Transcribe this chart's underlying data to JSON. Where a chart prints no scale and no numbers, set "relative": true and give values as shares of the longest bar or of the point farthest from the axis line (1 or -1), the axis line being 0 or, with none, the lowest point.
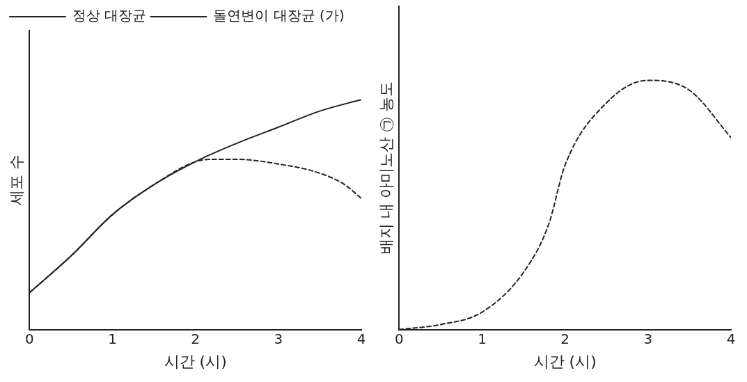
{
  "chart_data": [
    {
      "type": "line",
      "xlabel": "시간 (시)",
      "ylabel": "세포 수",
      "relative": true,
      "xlim": [
        0,
        4
      ],
      "xticks": [
        0,
        1,
        2,
        3,
        4
      ],
      "tick_labels": "x",
      "grid": false,
      "legend": "top left",
      "marker": "none",
      "series": [
        {
          "name": "정상 대장균",
          "color": "#222222",
          "line_style": "solid",
          "x": [
            0,
            0.5,
            1,
            1.5,
            2,
            2.5,
            3,
            3.5,
            4
          ],
          "values": [
            0.16,
            0.32,
            0.5,
            0.63,
            0.73,
            0.81,
            0.88,
            0.95,
            1
          ]
        },
        {
          "name": "돌연변이 대장균 (가)",
          "color": "#222222",
          "line_style": "dashed",
          "x": [
            0,
            0.5,
            1,
            1.5,
            2,
            2.2,
            2.5,
            3,
            3.5,
            3.8,
            4
          ],
          "values": [
            0.16,
            0.32,
            0.5,
            0.63,
            0.73,
            0.74,
            0.74,
            0.72,
            0.68,
            0.63,
            0.57
          ]
        }
      ]
    },
    {
      "type": "line",
      "xlabel": "시간 (시)",
      "ylabel": "배지 내 아미노산 ㉠ 농도",
      "relative": true,
      "xlim": [
        0,
        4
      ],
      "xticks": [
        0,
        1,
        2,
        3,
        4
      ],
      "tick_labels": "x",
      "grid": false,
      "legend": false,
      "marker": "none",
      "series": [
        {
          "color": "#222222",
          "line_style": "dashed",
          "x": [
            0,
            0.5,
            1,
            1.5,
            1.8,
            2,
            2.5,
            3,
            3.5,
            4
          ],
          "values": [
            0,
            0.02,
            0.07,
            0.23,
            0.42,
            0.66,
            0.91,
            1,
            0.96,
            0.77
          ]
        }
      ]
    }
  ]
}
